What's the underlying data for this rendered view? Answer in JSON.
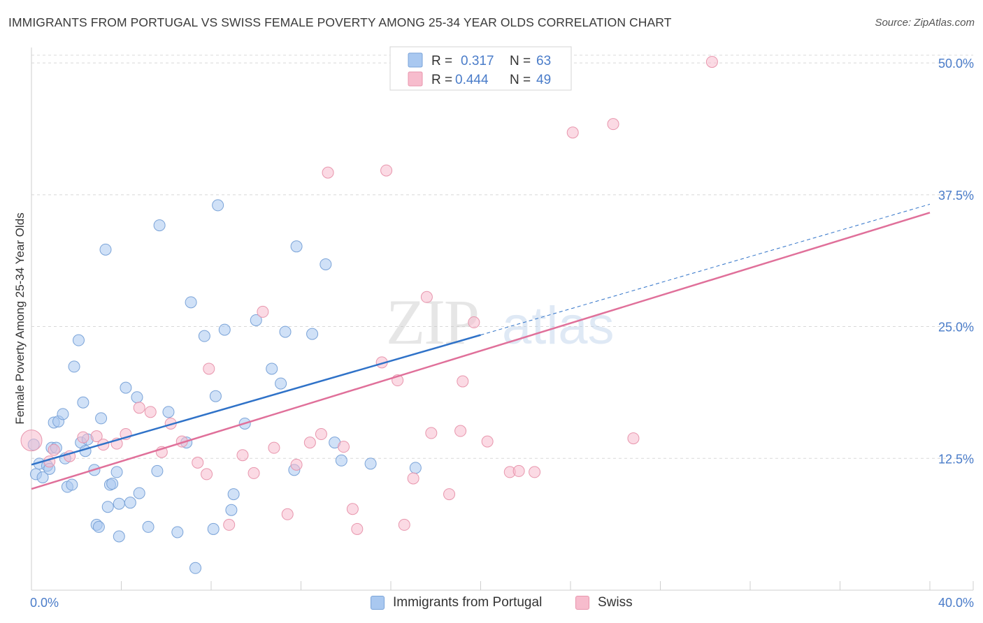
{
  "title": "IMMIGRANTS FROM PORTUGAL VS SWISS FEMALE POVERTY AMONG 25-34 YEAR OLDS CORRELATION CHART",
  "source": "Source: ZipAtlas.com",
  "watermark": {
    "part1": "ZIP",
    "part2": "atlas"
  },
  "colors": {
    "blue_fill": "#a9c8f0",
    "blue_stroke": "#7aa3d8",
    "blue_line": "#2f72c8",
    "pink_fill": "#f7bccd",
    "pink_stroke": "#e896ad",
    "pink_line": "#e0709a",
    "axis_label": "#4a7cc9",
    "grid": "#d8d8d8"
  },
  "legend": {
    "rows": [
      {
        "r_label": "R =",
        "r_value": "0.317",
        "n_label": "N =",
        "n_value": "63"
      },
      {
        "r_label": "R =",
        "r_value": "0.444",
        "n_label": "N =",
        "n_value": "49"
      }
    ]
  },
  "chart_data": {
    "type": "scatter",
    "title": "IMMIGRANTS FROM PORTUGAL VS SWISS FEMALE POVERTY AMONG 25-34 YEAR OLDS CORRELATION CHART",
    "xlabel": "",
    "ylabel": "Female Poverty Among 25-34 Year Olds",
    "xlim": [
      0,
      40
    ],
    "ylim": [
      0,
      51
    ],
    "x_tick_labels": [
      "0.0%",
      "40.0%"
    ],
    "y_ticks": [
      12.5,
      25.0,
      37.5,
      50.0
    ],
    "y_tick_labels": [
      "12.5%",
      "25.0%",
      "37.5%",
      "50.0%"
    ],
    "grid": true,
    "legend_position": "top-center",
    "series": [
      {
        "name": "Immigrants from Portugal",
        "color": "#a9c8f0",
        "r": 0.317,
        "n": 63,
        "trend": {
          "x": [
            0,
            20
          ],
          "y": [
            11.9,
            24.2
          ],
          "extended_to": [
            40,
            36.6
          ]
        },
        "points": [
          [
            0.1,
            13.8
          ],
          [
            0.2,
            11.0
          ],
          [
            0.35,
            12.0
          ],
          [
            0.5,
            10.7
          ],
          [
            0.7,
            11.8
          ],
          [
            0.8,
            11.5
          ],
          [
            0.9,
            13.5
          ],
          [
            1.0,
            15.9
          ],
          [
            1.1,
            13.5
          ],
          [
            1.2,
            16.0
          ],
          [
            1.4,
            16.7
          ],
          [
            1.5,
            12.5
          ],
          [
            1.6,
            9.8
          ],
          [
            1.8,
            10.0
          ],
          [
            1.9,
            21.2
          ],
          [
            2.1,
            23.7
          ],
          [
            2.2,
            14.0
          ],
          [
            2.3,
            17.8
          ],
          [
            2.4,
            13.2
          ],
          [
            2.5,
            14.3
          ],
          [
            2.8,
            11.4
          ],
          [
            2.9,
            6.2
          ],
          [
            3.0,
            6.0
          ],
          [
            3.1,
            16.3
          ],
          [
            3.3,
            32.3
          ],
          [
            3.4,
            7.9
          ],
          [
            3.5,
            10.0
          ],
          [
            3.6,
            10.1
          ],
          [
            3.8,
            11.2
          ],
          [
            3.9,
            8.2
          ],
          [
            4.2,
            19.2
          ],
          [
            4.4,
            8.3
          ],
          [
            4.7,
            18.3
          ],
          [
            4.8,
            9.2
          ],
          [
            5.2,
            6.0
          ],
          [
            5.6,
            11.3
          ],
          [
            5.7,
            34.6
          ],
          [
            6.1,
            16.9
          ],
          [
            6.5,
            5.5
          ],
          [
            6.9,
            14.0
          ],
          [
            7.1,
            27.3
          ],
          [
            7.3,
            2.1
          ],
          [
            7.7,
            24.1
          ],
          [
            8.1,
            5.8
          ],
          [
            8.2,
            18.4
          ],
          [
            8.6,
            24.7
          ],
          [
            8.9,
            7.6
          ],
          [
            9.0,
            9.1
          ],
          [
            8.3,
            36.5
          ],
          [
            9.5,
            15.8
          ],
          [
            10.0,
            25.6
          ],
          [
            10.7,
            21.0
          ],
          [
            11.1,
            19.6
          ],
          [
            11.3,
            24.5
          ],
          [
            11.7,
            11.4
          ],
          [
            11.8,
            32.6
          ],
          [
            12.5,
            24.3
          ],
          [
            13.1,
            30.9
          ],
          [
            13.5,
            14.0
          ],
          [
            13.8,
            12.3
          ],
          [
            15.1,
            12.0
          ],
          [
            17.1,
            11.6
          ],
          [
            3.9,
            5.1
          ]
        ]
      },
      {
        "name": "Swiss",
        "color": "#f7bccd",
        "r": 0.444,
        "n": 49,
        "trend": {
          "x": [
            0,
            40
          ],
          "y": [
            9.6,
            35.8
          ]
        },
        "points": [
          [
            0.0,
            14.2
          ],
          [
            0.8,
            12.2
          ],
          [
            1.0,
            13.3
          ],
          [
            1.7,
            12.7
          ],
          [
            2.3,
            14.5
          ],
          [
            2.9,
            14.6
          ],
          [
            3.2,
            13.8
          ],
          [
            3.8,
            13.9
          ],
          [
            4.2,
            14.8
          ],
          [
            4.8,
            17.3
          ],
          [
            5.3,
            16.9
          ],
          [
            5.8,
            13.1
          ],
          [
            6.2,
            15.8
          ],
          [
            6.7,
            14.1
          ],
          [
            7.4,
            12.1
          ],
          [
            7.8,
            11.0
          ],
          [
            7.9,
            21.0
          ],
          [
            8.8,
            6.2
          ],
          [
            9.4,
            12.8
          ],
          [
            9.9,
            11.1
          ],
          [
            10.3,
            26.4
          ],
          [
            10.8,
            13.5
          ],
          [
            11.4,
            7.2
          ],
          [
            11.8,
            11.9
          ],
          [
            12.4,
            14.0
          ],
          [
            12.9,
            14.8
          ],
          [
            13.2,
            39.6
          ],
          [
            13.9,
            13.6
          ],
          [
            14.3,
            7.7
          ],
          [
            14.5,
            5.8
          ],
          [
            15.6,
            21.6
          ],
          [
            15.8,
            39.8
          ],
          [
            16.3,
            19.9
          ],
          [
            16.6,
            6.2
          ],
          [
            17.0,
            10.6
          ],
          [
            17.6,
            27.8
          ],
          [
            17.8,
            14.9
          ],
          [
            18.6,
            9.1
          ],
          [
            19.2,
            19.8
          ],
          [
            19.7,
            25.4
          ],
          [
            20.3,
            14.1
          ],
          [
            21.3,
            11.2
          ],
          [
            21.7,
            11.3
          ],
          [
            22.4,
            11.2
          ],
          [
            24.1,
            43.4
          ],
          [
            25.9,
            44.2
          ],
          [
            26.8,
            14.4
          ],
          [
            30.3,
            50.1
          ],
          [
            19.1,
            15.1
          ]
        ]
      }
    ]
  }
}
